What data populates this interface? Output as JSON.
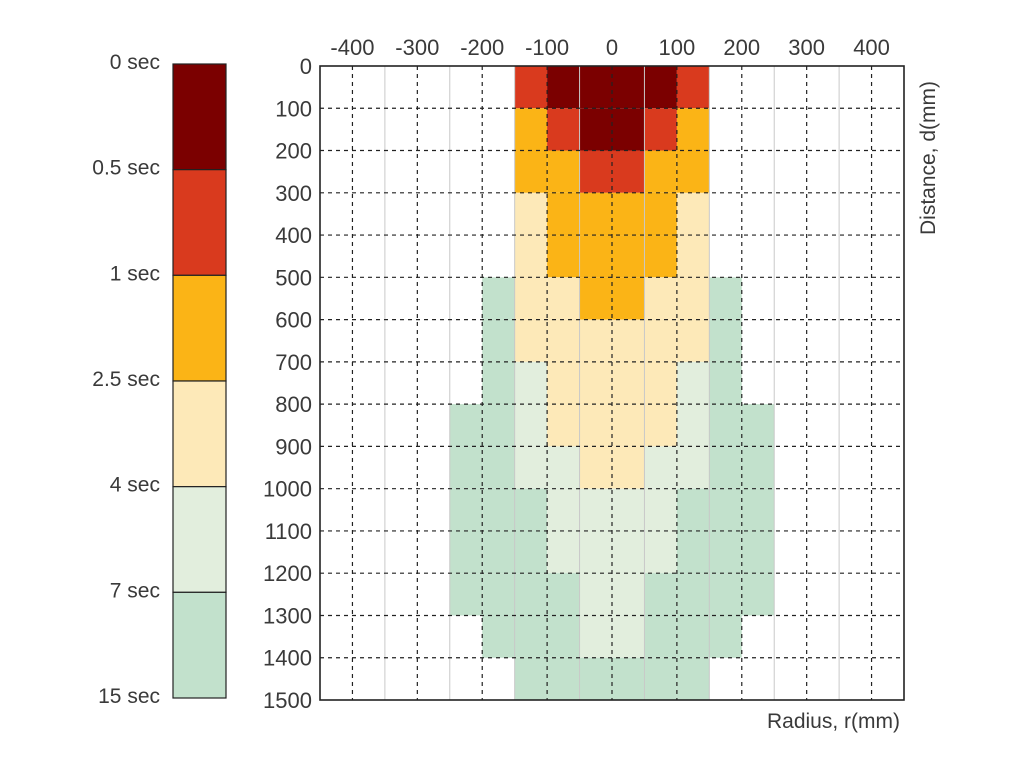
{
  "chart_data": {
    "type": "heatmap",
    "title": "",
    "xlabel": "Radius, r(mm)",
    "ylabel": "Distance, d(mm)",
    "x_ticks": [
      "-400",
      "-300",
      "-200",
      "-100",
      "0",
      "100",
      "200",
      "300",
      "400"
    ],
    "y_ticks": [
      "0",
      "100",
      "200",
      "300",
      "400",
      "500",
      "600",
      "700",
      "800",
      "900",
      "1000",
      "1100",
      "1200",
      "1300",
      "1400",
      "1500"
    ],
    "xlim": [
      -450,
      450
    ],
    "ylim": [
      0,
      1500
    ],
    "x_axis_position": "top",
    "y_axis_position": "left",
    "y_axis_inverted": true,
    "grid": true,
    "cell_width_mm": 50,
    "cell_height_mm": 100,
    "legend_position": "left",
    "legend": {
      "boundaries": [
        "0 sec",
        "0.5 sec",
        "1 sec",
        "2.5 sec",
        "4 sec",
        "7 sec",
        "15 sec"
      ],
      "bins": [
        {
          "range": "0 - 0.5 sec",
          "color": "#7b0000"
        },
        {
          "range": "0.5 - 1 sec",
          "color": "#d93a1e"
        },
        {
          "range": "1 - 2.5 sec",
          "color": "#fbb416"
        },
        {
          "range": "2.5 - 4 sec",
          "color": "#fde9b8"
        },
        {
          "range": "4 - 7 sec",
          "color": "#e2eedd"
        },
        {
          "range": "7 - 15 sec",
          "color": "#c2e1cc"
        }
      ]
    },
    "cells_note": "rows = distance bins (0-100 ... 1400-1500 mm), columns = radius bins of 50 mm from -450 to 450 mm; value = legend bin index (0 = 0-0.5 sec ... 5 = 7-15 sec), -1 = no data",
    "cells": [
      [
        -1,
        -1,
        -1,
        -1,
        -1,
        -1,
        1,
        0,
        0,
        0,
        0,
        1,
        -1,
        -1,
        -1,
        -1,
        -1,
        -1
      ],
      [
        -1,
        -1,
        -1,
        -1,
        -1,
        -1,
        2,
        1,
        0,
        0,
        1,
        2,
        -1,
        -1,
        -1,
        -1,
        -1,
        -1
      ],
      [
        -1,
        -1,
        -1,
        -1,
        -1,
        -1,
        2,
        2,
        1,
        1,
        2,
        2,
        -1,
        -1,
        -1,
        -1,
        -1,
        -1
      ],
      [
        -1,
        -1,
        -1,
        -1,
        -1,
        -1,
        3,
        2,
        2,
        2,
        2,
        3,
        -1,
        -1,
        -1,
        -1,
        -1,
        -1
      ],
      [
        -1,
        -1,
        -1,
        -1,
        -1,
        -1,
        3,
        2,
        2,
        2,
        2,
        3,
        -1,
        -1,
        -1,
        -1,
        -1,
        -1
      ],
      [
        -1,
        -1,
        -1,
        -1,
        -1,
        5,
        3,
        3,
        2,
        2,
        3,
        3,
        5,
        -1,
        -1,
        -1,
        -1,
        -1
      ],
      [
        -1,
        -1,
        -1,
        -1,
        -1,
        5,
        3,
        3,
        3,
        3,
        3,
        3,
        5,
        -1,
        -1,
        -1,
        -1,
        -1
      ],
      [
        -1,
        -1,
        -1,
        -1,
        -1,
        5,
        4,
        3,
        3,
        3,
        3,
        4,
        5,
        -1,
        -1,
        -1,
        -1,
        -1
      ],
      [
        -1,
        -1,
        -1,
        -1,
        5,
        5,
        4,
        3,
        3,
        3,
        3,
        4,
        5,
        5,
        -1,
        -1,
        -1,
        -1
      ],
      [
        -1,
        -1,
        -1,
        -1,
        5,
        5,
        4,
        4,
        3,
        3,
        4,
        4,
        5,
        5,
        -1,
        -1,
        -1,
        -1
      ],
      [
        -1,
        -1,
        -1,
        -1,
        5,
        5,
        5,
        4,
        4,
        4,
        4,
        5,
        5,
        5,
        -1,
        -1,
        -1,
        -1
      ],
      [
        -1,
        -1,
        -1,
        -1,
        5,
        5,
        5,
        4,
        4,
        4,
        4,
        5,
        5,
        5,
        -1,
        -1,
        -1,
        -1
      ],
      [
        -1,
        -1,
        -1,
        -1,
        5,
        5,
        5,
        5,
        4,
        4,
        5,
        5,
        5,
        5,
        -1,
        -1,
        -1,
        -1
      ],
      [
        -1,
        -1,
        -1,
        -1,
        -1,
        5,
        5,
        5,
        4,
        4,
        5,
        5,
        5,
        -1,
        -1,
        -1,
        -1,
        -1
      ],
      [
        -1,
        -1,
        -1,
        -1,
        -1,
        -1,
        5,
        5,
        5,
        5,
        5,
        5,
        -1,
        -1,
        -1,
        -1,
        -1,
        -1
      ]
    ]
  }
}
